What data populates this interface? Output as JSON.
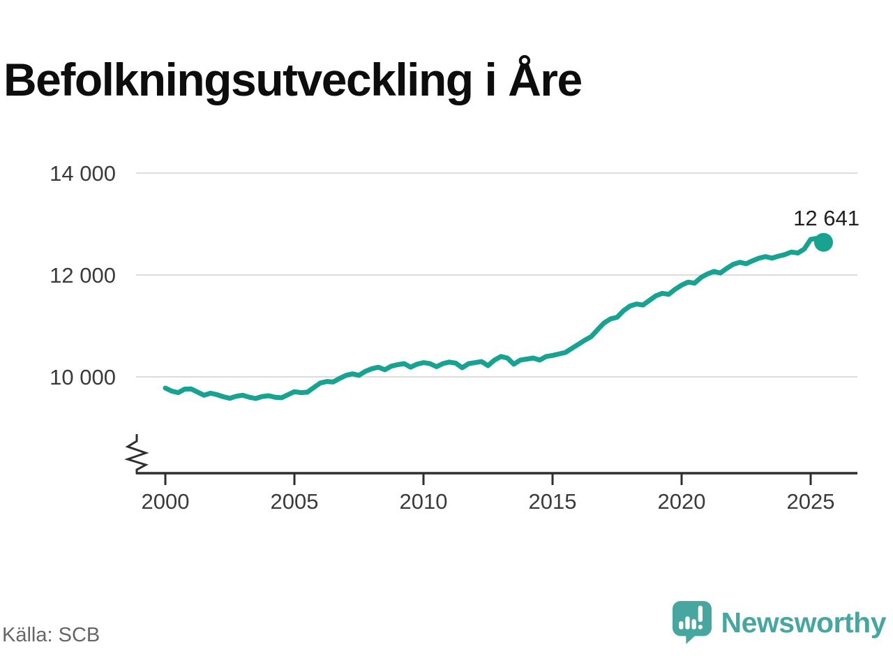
{
  "page": {
    "title": "Befolkningsutveckling i Åre",
    "source": "Källa: SCB",
    "brand": {
      "name": "Newsworthy",
      "icon": "newsworthy-chart-bubble-icon"
    }
  },
  "colors": {
    "line": "#17a292",
    "end_dot": "#17a292",
    "grid": "#dcdcdc",
    "axis": "#2e2e2e",
    "tick_text": "#3a3a3a",
    "title_text": "#0d0d0d",
    "annotation_text": "#1f1f1f",
    "source_text": "#666666",
    "brand_teal": "#48a6a1"
  },
  "chart_data": {
    "type": "line",
    "title": "Befolkningsutveckling i Åre",
    "x_unit": "year",
    "x_start": 2000,
    "x_step": 0.25,
    "grid": "horizontal-only",
    "axis_break_on_y": true,
    "legend": "none",
    "ylim_visible": [
      9400,
      14300
    ],
    "xlim_visible": [
      1998.9,
      2027.4
    ],
    "yticks": [
      {
        "value": 10000,
        "label": "10 000"
      },
      {
        "value": 12000,
        "label": "12 000"
      },
      {
        "value": 14000,
        "label": "14 000"
      }
    ],
    "xticks": [
      {
        "value": 2000,
        "label": "2000"
      },
      {
        "value": 2005,
        "label": "2005"
      },
      {
        "value": 2010,
        "label": "2010"
      },
      {
        "value": 2015,
        "label": "2015"
      },
      {
        "value": 2020,
        "label": "2020"
      },
      {
        "value": 2025,
        "label": "2025"
      }
    ],
    "end_point_label": "12 641",
    "end_point_value": 12641,
    "values": [
      9781,
      9720,
      9690,
      9760,
      9765,
      9700,
      9640,
      9680,
      9650,
      9610,
      9580,
      9620,
      9640,
      9600,
      9575,
      9615,
      9630,
      9600,
      9590,
      9650,
      9710,
      9690,
      9700,
      9790,
      9880,
      9910,
      9900,
      9970,
      10030,
      10060,
      10030,
      10110,
      10160,
      10190,
      10140,
      10210,
      10240,
      10260,
      10190,
      10250,
      10280,
      10260,
      10200,
      10260,
      10290,
      10270,
      10180,
      10260,
      10280,
      10300,
      10220,
      10330,
      10400,
      10370,
      10250,
      10330,
      10350,
      10370,
      10330,
      10400,
      10420,
      10450,
      10480,
      10560,
      10640,
      10720,
      10790,
      10930,
      11060,
      11140,
      11170,
      11300,
      11390,
      11430,
      11410,
      11500,
      11590,
      11640,
      11620,
      11720,
      11800,
      11860,
      11840,
      11950,
      12020,
      12070,
      12040,
      12130,
      12210,
      12250,
      12220,
      12280,
      12330,
      12360,
      12330,
      12370,
      12400,
      12450,
      12430,
      12510,
      12700,
      12720,
      12641
    ]
  }
}
